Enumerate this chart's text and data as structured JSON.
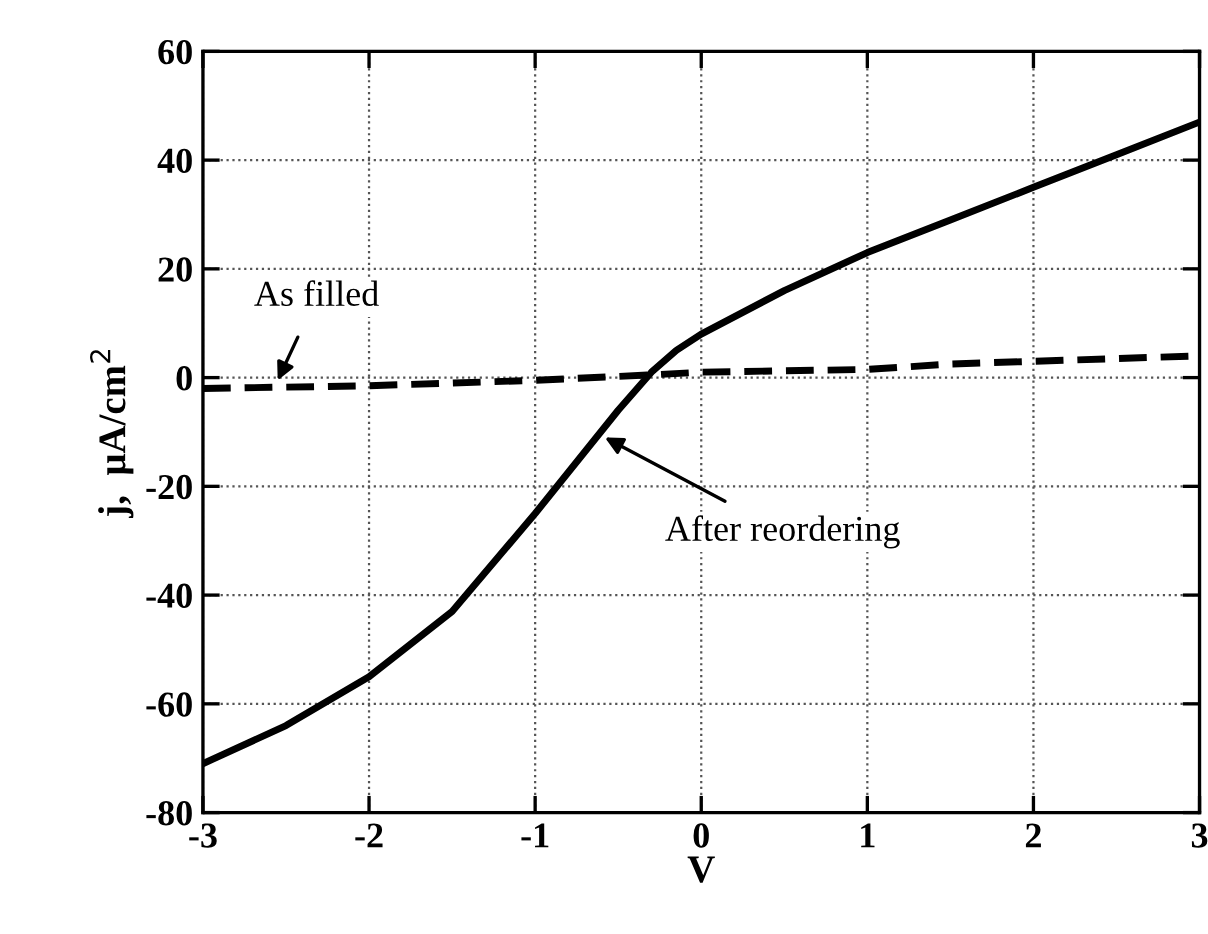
{
  "chart_data": {
    "type": "line",
    "xlabel": "V",
    "ylabel": "j,  μA/cm$^{2}$",
    "xlim": [
      -3,
      3
    ],
    "xticks": [
      -3,
      -2,
      -1,
      0,
      1,
      2,
      3
    ],
    "ylim": [
      -80,
      60
    ],
    "yticks": [
      -80,
      -60,
      -40,
      -20,
      0,
      20,
      40,
      60
    ],
    "grid": true,
    "marker": "none",
    "series": [
      {
        "color": "#000000",
        "line_style": "solid",
        "x": [
          -3,
          -2.5,
          -2,
          -1.5,
          -1,
          -0.5,
          -0.3,
          -0.15,
          0,
          0.5,
          1,
          1.5,
          2,
          2.5,
          3
        ],
        "values": [
          -71,
          -64,
          -55,
          -43,
          -25,
          -6,
          1,
          5,
          8,
          16,
          23,
          29,
          35,
          41,
          47
        ]
      },
      {
        "color": "#000000",
        "line_style": "dashed",
        "x": [
          -3,
          -2,
          -1,
          -0.3,
          0,
          1,
          1.5,
          2,
          3
        ],
        "values": [
          -2,
          -1.5,
          -0.5,
          0.5,
          1,
          1.5,
          2.5,
          3,
          4
        ]
      }
    ],
    "annotations": [
      {
        "text": "As filled",
        "x": -2.55,
        "y": -0.5
      },
      {
        "text": "After reordering",
        "x": -0.58,
        "y": -11
      }
    ]
  }
}
